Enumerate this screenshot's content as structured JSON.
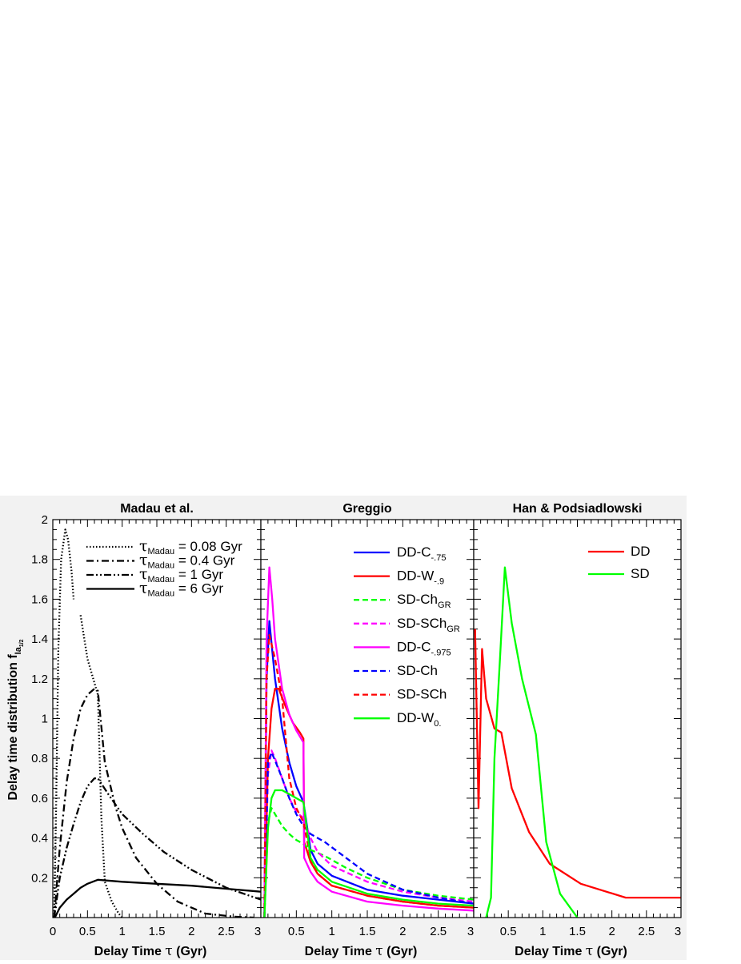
{
  "y_axis_label": {
    "main": "Delay time distribution f",
    "sub": "Ia",
    "subsub": "1/2"
  },
  "y_ticks": [
    "0.2",
    "0.4",
    "0.6",
    "0.8",
    "1",
    "1.2",
    "1.4",
    "1.6",
    "1.8",
    "2"
  ],
  "chart_data": [
    {
      "type": "line",
      "title": "Madau et al.",
      "xlabel": "Delay Time τ (Gyr)",
      "xlim": [
        0,
        3
      ],
      "ylim": [
        0,
        2
      ],
      "x_ticks": [
        "0",
        "0.5",
        "1",
        "1.5",
        "2",
        "2.5",
        "3"
      ],
      "grid": false,
      "legend_position": "top-right",
      "series": [
        {
          "name": "τ_Madau = 0.08 Gyr",
          "legend": {
            "sym": "τ",
            "sub": "Madau",
            "rest": " = 0.08 Gyr"
          },
          "color": "#000000",
          "dash": "dot",
          "points": [
            [
              0.02,
              0
            ],
            [
              0.05,
              0.6
            ],
            [
              0.08,
              1.35
            ],
            [
              0.12,
              1.8
            ],
            [
              0.18,
              1.95
            ],
            [
              0.22,
              1.9
            ],
            [
              0.27,
              1.74
            ],
            [
              0.3,
              1.6
            ]
          ]
        },
        {
          "name": "τ_Madau = 0.08 Gyr (tail)",
          "legend": null,
          "color": "#000000",
          "dash": "dot",
          "points": [
            [
              0.4,
              1.52
            ],
            [
              0.5,
              1.3
            ],
            [
              0.6,
              1.18
            ],
            [
              0.65,
              1.12
            ],
            [
              0.7,
              0.5
            ],
            [
              0.75,
              0.18
            ],
            [
              0.85,
              0.08
            ],
            [
              0.95,
              0.02
            ],
            [
              1.0,
              0
            ]
          ]
        },
        {
          "name": "τ_Madau = 0.4 Gyr",
          "legend": {
            "sym": "τ",
            "sub": "Madau",
            "rest": " = 0.4 Gyr"
          },
          "color": "#000000",
          "dash": "dashdot",
          "points": [
            [
              0.02,
              0
            ],
            [
              0.1,
              0.35
            ],
            [
              0.2,
              0.68
            ],
            [
              0.3,
              0.9
            ],
            [
              0.4,
              1.05
            ],
            [
              0.5,
              1.12
            ],
            [
              0.6,
              1.15
            ],
            [
              0.65,
              1.14
            ],
            [
              0.75,
              0.78
            ],
            [
              0.9,
              0.56
            ],
            [
              1.0,
              0.45
            ],
            [
              1.2,
              0.3
            ],
            [
              1.5,
              0.17
            ],
            [
              1.8,
              0.08
            ],
            [
              2.2,
              0.02
            ],
            [
              2.6,
              0.005
            ],
            [
              2.9,
              0
            ]
          ]
        },
        {
          "name": "τ_Madau = 1 Gyr",
          "legend": {
            "sym": "τ",
            "sub": "Madau",
            "rest": " = 1 Gyr"
          },
          "color": "#000000",
          "dash": "dashdotdot",
          "points": [
            [
              0.02,
              0
            ],
            [
              0.1,
              0.2
            ],
            [
              0.2,
              0.35
            ],
            [
              0.3,
              0.47
            ],
            [
              0.4,
              0.58
            ],
            [
              0.5,
              0.66
            ],
            [
              0.6,
              0.7
            ],
            [
              0.65,
              0.7
            ],
            [
              0.8,
              0.62
            ],
            [
              1.0,
              0.52
            ],
            [
              1.3,
              0.42
            ],
            [
              1.6,
              0.33
            ],
            [
              2.0,
              0.24
            ],
            [
              2.5,
              0.15
            ],
            [
              3.0,
              0.09
            ]
          ]
        },
        {
          "name": "τ_Madau = 6 Gyr",
          "legend": {
            "sym": "τ",
            "sub": "Madau",
            "rest": " = 6 Gyr"
          },
          "color": "#000000",
          "dash": "solid",
          "points": [
            [
              0.03,
              0
            ],
            [
              0.1,
              0.05
            ],
            [
              0.2,
              0.09
            ],
            [
              0.3,
              0.12
            ],
            [
              0.4,
              0.15
            ],
            [
              0.5,
              0.17
            ],
            [
              0.65,
              0.19
            ],
            [
              1.0,
              0.18
            ],
            [
              1.5,
              0.17
            ],
            [
              2.0,
              0.16
            ],
            [
              2.5,
              0.145
            ],
            [
              3.0,
              0.13
            ]
          ]
        }
      ]
    },
    {
      "type": "line",
      "title": "Greggio",
      "xlabel": "Delay Time τ (Gyr)",
      "xlim": [
        0,
        3
      ],
      "ylim": [
        0,
        2
      ],
      "x_ticks": [
        "0.5",
        "1",
        "1.5",
        "2",
        "2.5",
        "3"
      ],
      "grid": false,
      "legend_position": "top-right",
      "series": [
        {
          "name": "DD-C-.75",
          "legend": {
            "main": "DD-C",
            "sub": "-.75"
          },
          "color": "#0000ff",
          "dash": "solid",
          "points": [
            [
              0.05,
              0
            ],
            [
              0.08,
              1.2
            ],
            [
              0.12,
              1.49
            ],
            [
              0.2,
              1.2
            ],
            [
              0.3,
              0.95
            ],
            [
              0.4,
              0.78
            ],
            [
              0.5,
              0.66
            ],
            [
              0.6,
              0.58
            ],
            [
              0.7,
              0.34
            ],
            [
              0.8,
              0.27
            ],
            [
              1.0,
              0.21
            ],
            [
              1.5,
              0.14
            ],
            [
              2.0,
              0.11
            ],
            [
              2.5,
              0.09
            ],
            [
              3.0,
              0.07
            ]
          ]
        },
        {
          "name": "DD-W-.9",
          "legend": {
            "main": "DD-W",
            "sub": "-.9"
          },
          "color": "#ff0000",
          "dash": "solid",
          "points": [
            [
              0.05,
              0
            ],
            [
              0.1,
              0.8
            ],
            [
              0.15,
              1.05
            ],
            [
              0.2,
              1.15
            ],
            [
              0.25,
              1.15
            ],
            [
              0.35,
              1.06
            ],
            [
              0.45,
              0.98
            ],
            [
              0.55,
              0.93
            ],
            [
              0.6,
              0.9
            ],
            [
              0.61,
              0.38
            ],
            [
              0.7,
              0.28
            ],
            [
              0.8,
              0.22
            ],
            [
              1.0,
              0.16
            ],
            [
              1.5,
              0.11
            ],
            [
              2.0,
              0.08
            ],
            [
              2.5,
              0.06
            ],
            [
              3.0,
              0.05
            ]
          ]
        },
        {
          "name": "SD-Ch_GR",
          "legend": {
            "main": "SD-Ch",
            "sub": "GR"
          },
          "color": "#00ff00",
          "dash": "dash",
          "points": [
            [
              0.05,
              0
            ],
            [
              0.1,
              0.48
            ],
            [
              0.15,
              0.55
            ],
            [
              0.2,
              0.52
            ],
            [
              0.3,
              0.46
            ],
            [
              0.4,
              0.42
            ],
            [
              0.5,
              0.39
            ],
            [
              0.6,
              0.37
            ],
            [
              0.7,
              0.34
            ],
            [
              0.9,
              0.31
            ],
            [
              1.2,
              0.25
            ],
            [
              1.5,
              0.2
            ],
            [
              2.0,
              0.14
            ],
            [
              2.5,
              0.11
            ],
            [
              3.0,
              0.09
            ]
          ]
        },
        {
          "name": "SD-SCh_GR",
          "legend": {
            "main": "SD-SCh",
            "sub": "GR"
          },
          "color": "#ff00ff",
          "dash": "dash",
          "points": [
            [
              0.05,
              0
            ],
            [
              0.1,
              0.72
            ],
            [
              0.15,
              0.84
            ],
            [
              0.2,
              0.8
            ],
            [
              0.3,
              0.7
            ],
            [
              0.4,
              0.6
            ],
            [
              0.5,
              0.53
            ],
            [
              0.6,
              0.5
            ],
            [
              0.7,
              0.4
            ],
            [
              0.8,
              0.33
            ],
            [
              1.0,
              0.26
            ],
            [
              1.5,
              0.18
            ],
            [
              2.0,
              0.13
            ],
            [
              2.5,
              0.1
            ],
            [
              3.0,
              0.08
            ]
          ]
        },
        {
          "name": "DD-C-.975",
          "legend": {
            "main": "DD-C",
            "sub": "-.975"
          },
          "color": "#ff00ff",
          "dash": "solid",
          "points": [
            [
              0.05,
              0
            ],
            [
              0.08,
              1.4
            ],
            [
              0.12,
              1.76
            ],
            [
              0.16,
              1.6
            ],
            [
              0.2,
              1.4
            ],
            [
              0.3,
              1.15
            ],
            [
              0.4,
              1.02
            ],
            [
              0.5,
              0.94
            ],
            [
              0.6,
              0.88
            ],
            [
              0.61,
              0.3
            ],
            [
              0.7,
              0.23
            ],
            [
              0.8,
              0.18
            ],
            [
              1.0,
              0.13
            ],
            [
              1.5,
              0.08
            ],
            [
              2.0,
              0.06
            ],
            [
              2.5,
              0.045
            ],
            [
              3.0,
              0.035
            ]
          ]
        },
        {
          "name": "SD-Ch",
          "legend": {
            "main": "SD-Ch",
            "sub": ""
          },
          "color": "#0000ff",
          "dash": "dash",
          "points": [
            [
              0.05,
              0
            ],
            [
              0.1,
              0.78
            ],
            [
              0.15,
              0.83
            ],
            [
              0.2,
              0.79
            ],
            [
              0.3,
              0.7
            ],
            [
              0.4,
              0.6
            ],
            [
              0.5,
              0.52
            ],
            [
              0.6,
              0.46
            ],
            [
              0.7,
              0.42
            ],
            [
              0.9,
              0.38
            ],
            [
              1.2,
              0.3
            ],
            [
              1.5,
              0.22
            ],
            [
              2.0,
              0.14
            ],
            [
              2.5,
              0.1
            ],
            [
              3.0,
              0.07
            ]
          ]
        },
        {
          "name": "SD-SCh",
          "legend": {
            "main": "SD-SCh",
            "sub": ""
          },
          "color": "#ff0000",
          "dash": "dash",
          "points": [
            [
              0.05,
              0
            ],
            [
              0.08,
              1.2
            ],
            [
              0.12,
              1.42
            ],
            [
              0.2,
              1.3
            ],
            [
              0.3,
              1.1
            ],
            [
              0.35,
              0.9
            ],
            [
              0.4,
              0.7
            ],
            [
              0.5,
              0.55
            ],
            [
              0.6,
              0.48
            ],
            [
              0.7,
              0.3
            ],
            [
              0.8,
              0.22
            ],
            [
              1.0,
              0.16
            ],
            [
              1.5,
              0.11
            ],
            [
              2.0,
              0.08
            ],
            [
              2.5,
              0.06
            ],
            [
              3.0,
              0.05
            ]
          ]
        },
        {
          "name": "DD-W0.",
          "legend": {
            "main": "DD-W",
            "sub": "0."
          },
          "color": "#00ff00",
          "dash": "solid",
          "points": [
            [
              0.05,
              0
            ],
            [
              0.1,
              0.45
            ],
            [
              0.15,
              0.6
            ],
            [
              0.2,
              0.64
            ],
            [
              0.3,
              0.64
            ],
            [
              0.4,
              0.62
            ],
            [
              0.5,
              0.6
            ],
            [
              0.6,
              0.58
            ],
            [
              0.7,
              0.3
            ],
            [
              0.8,
              0.24
            ],
            [
              1.0,
              0.18
            ],
            [
              1.5,
              0.12
            ],
            [
              2.0,
              0.09
            ],
            [
              2.5,
              0.07
            ],
            [
              3.0,
              0.06
            ]
          ]
        }
      ]
    },
    {
      "type": "line",
      "title": "Han & Podsiadlowski",
      "xlabel": "Delay Time τ (Gyr)",
      "xlim": [
        0,
        3
      ],
      "ylim": [
        0,
        2
      ],
      "x_ticks": [
        "0.5",
        "1",
        "1.5",
        "2",
        "2.5",
        "3"
      ],
      "grid": false,
      "legend_position": "top-right",
      "series": [
        {
          "name": "DD",
          "legend": {
            "main": "DD",
            "sub": ""
          },
          "color": "#ff0000",
          "dash": "solid",
          "points": [
            [
              0.02,
              1.45
            ],
            [
              0.07,
              0.55
            ],
            [
              0.12,
              1.35
            ],
            [
              0.18,
              1.1
            ],
            [
              0.3,
              0.95
            ],
            [
              0.4,
              0.93
            ],
            [
              0.55,
              0.65
            ],
            [
              0.8,
              0.43
            ],
            [
              1.1,
              0.27
            ],
            [
              1.55,
              0.17
            ],
            [
              2.2,
              0.1
            ],
            [
              3.0,
              0.1
            ]
          ]
        },
        {
          "name": "SD",
          "legend": {
            "main": "SD",
            "sub": ""
          },
          "color": "#00ff00",
          "dash": "solid",
          "points": [
            [
              0.18,
              0
            ],
            [
              0.25,
              0.1
            ],
            [
              0.3,
              0.8
            ],
            [
              0.38,
              1.3
            ],
            [
              0.45,
              1.76
            ],
            [
              0.55,
              1.48
            ],
            [
              0.7,
              1.2
            ],
            [
              0.9,
              0.92
            ],
            [
              1.05,
              0.38
            ],
            [
              1.25,
              0.12
            ],
            [
              1.5,
              0
            ]
          ]
        }
      ]
    }
  ]
}
